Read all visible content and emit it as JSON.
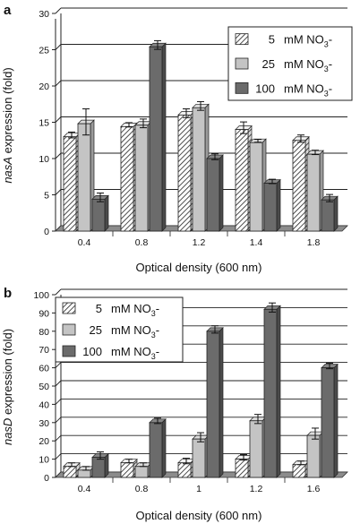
{
  "colors": {
    "series": [
      "hatched",
      "#c4c4c4",
      "#6b6b6b"
    ],
    "grid": "#222222",
    "floor": "#8c8c8c"
  },
  "chart_data": [
    {
      "panel": "a",
      "type": "bar",
      "categories": [
        "0.4",
        "0.8",
        "1.2",
        "1.4",
        "1.8"
      ],
      "series": [
        {
          "name": "5 mM NO3-",
          "values": [
            13.0,
            14.4,
            16.0,
            14.0,
            12.5
          ],
          "errors": [
            0.4,
            0.3,
            0.6,
            0.8,
            0.5
          ]
        },
        {
          "name": "25 mM NO3-",
          "values": [
            14.8,
            14.6,
            17.0,
            12.2,
            10.6
          ],
          "errors": [
            1.8,
            0.6,
            0.6,
            0.2,
            0.3
          ]
        },
        {
          "name": "100 mM NO3-",
          "values": [
            4.4,
            25.4,
            10.0,
            6.6,
            4.3
          ],
          "errors": [
            0.6,
            0.6,
            0.4,
            0.3,
            0.5
          ]
        }
      ],
      "legend_labels": {
        "conc": [
          "5",
          "25",
          "100"
        ],
        "unit": "mM NO",
        "sub": "3",
        "sup": "-"
      },
      "ylabel_italic": "nasA",
      "ylabel_rest": " expression (fold)",
      "xlabel": "Optical density (600 nm)",
      "ylim": [
        0,
        30
      ],
      "yticks": [
        "0",
        "5",
        "10",
        "15",
        "20",
        "25",
        "30"
      ],
      "grid": true,
      "legend_position": "top-right"
    },
    {
      "panel": "b",
      "type": "bar",
      "categories": [
        "0.4",
        "0.8",
        "1",
        "1.2",
        "1.6"
      ],
      "series": [
        {
          "name": "5 mM NO3-",
          "values": [
            6,
            8,
            8,
            10,
            7
          ],
          "errors": [
            1,
            1,
            1.5,
            1.5,
            1
          ]
        },
        {
          "name": "25 mM NO3-",
          "values": [
            4,
            6,
            21,
            31,
            23
          ],
          "errors": [
            1,
            1,
            2.5,
            2.5,
            3
          ]
        },
        {
          "name": "100 mM NO3-",
          "values": [
            11,
            30,
            80,
            92,
            60
          ],
          "errors": [
            2,
            1.5,
            2,
            2.5,
            1.5
          ]
        }
      ],
      "legend_labels": {
        "conc": [
          "5",
          "25",
          "100"
        ],
        "unit": "mM NO",
        "sub": "3",
        "sup": "-"
      },
      "ylabel_italic": "nasD",
      "ylabel_rest": " expression (fold)",
      "xlabel": "Optical density (600 nm)",
      "ylim": [
        0,
        100
      ],
      "yticks": [
        "0",
        "10",
        "20",
        "30",
        "40",
        "50",
        "60",
        "70",
        "80",
        "90",
        "100"
      ],
      "grid": true,
      "legend_position": "top-left"
    }
  ]
}
